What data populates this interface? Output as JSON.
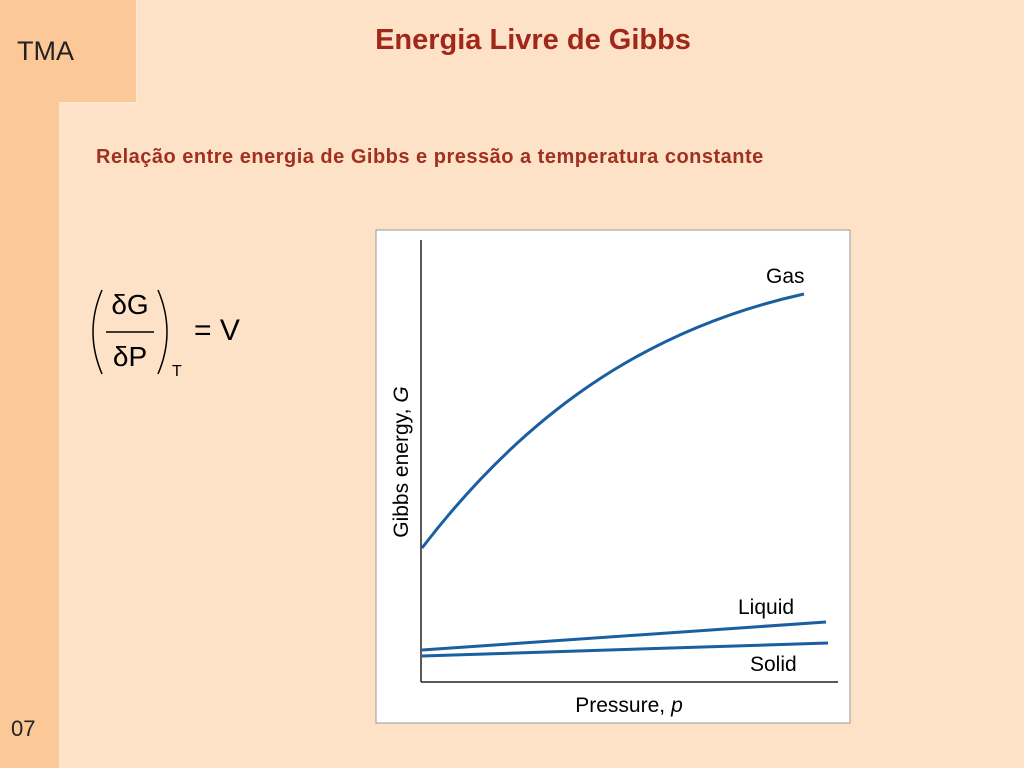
{
  "header": {
    "tag": "TMA",
    "title": "Energia Livre de Gibbs"
  },
  "page_number": "07",
  "subtitle": "Relação entre energia de Gibbs e pressão a temperatura constante",
  "equation": {
    "numerator": "δG",
    "denominator": "δP",
    "subscript": "T",
    "rhs": "= V"
  },
  "figure": {
    "y_label": {
      "text": "Gibbs energy,",
      "symbol": "G"
    },
    "x_label": {
      "text": "Pressure,",
      "symbol": "p"
    },
    "curves": [
      {
        "label": "Gas"
      },
      {
        "label": "Liquid"
      },
      {
        "label": "Solid"
      }
    ]
  }
}
